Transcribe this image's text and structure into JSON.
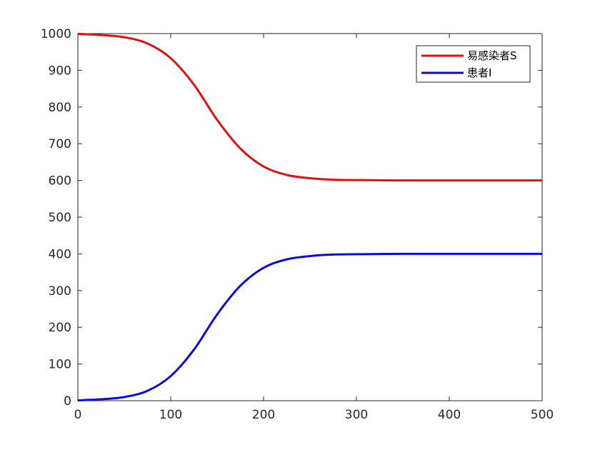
{
  "chart_data": {
    "type": "line",
    "title": "",
    "xlabel": "",
    "ylabel": "",
    "xlim": [
      0,
      500
    ],
    "ylim": [
      0,
      1000
    ],
    "xticks": [
      0,
      100,
      200,
      300,
      400,
      500
    ],
    "yticks": [
      0,
      100,
      200,
      300,
      400,
      500,
      600,
      700,
      800,
      900,
      1000
    ],
    "grid": false,
    "legend_position": "top-right",
    "x": [
      0,
      25,
      50,
      75,
      100,
      125,
      150,
      175,
      200,
      225,
      250,
      275,
      300,
      350,
      400,
      450,
      500
    ],
    "series": [
      {
        "name": "易感染者S",
        "color": "#dd1111",
        "values": [
          999,
          996,
          990,
          973,
          933,
          861,
          765,
          687,
          638,
          615,
          606,
          602,
          601,
          600,
          600,
          600,
          600
        ]
      },
      {
        "name": "患者I",
        "color": "#0b0bd8",
        "values": [
          1,
          4,
          10,
          27,
          67,
          139,
          235,
          313,
          362,
          385,
          394,
          398,
          399,
          400,
          400,
          400,
          400
        ]
      }
    ]
  }
}
